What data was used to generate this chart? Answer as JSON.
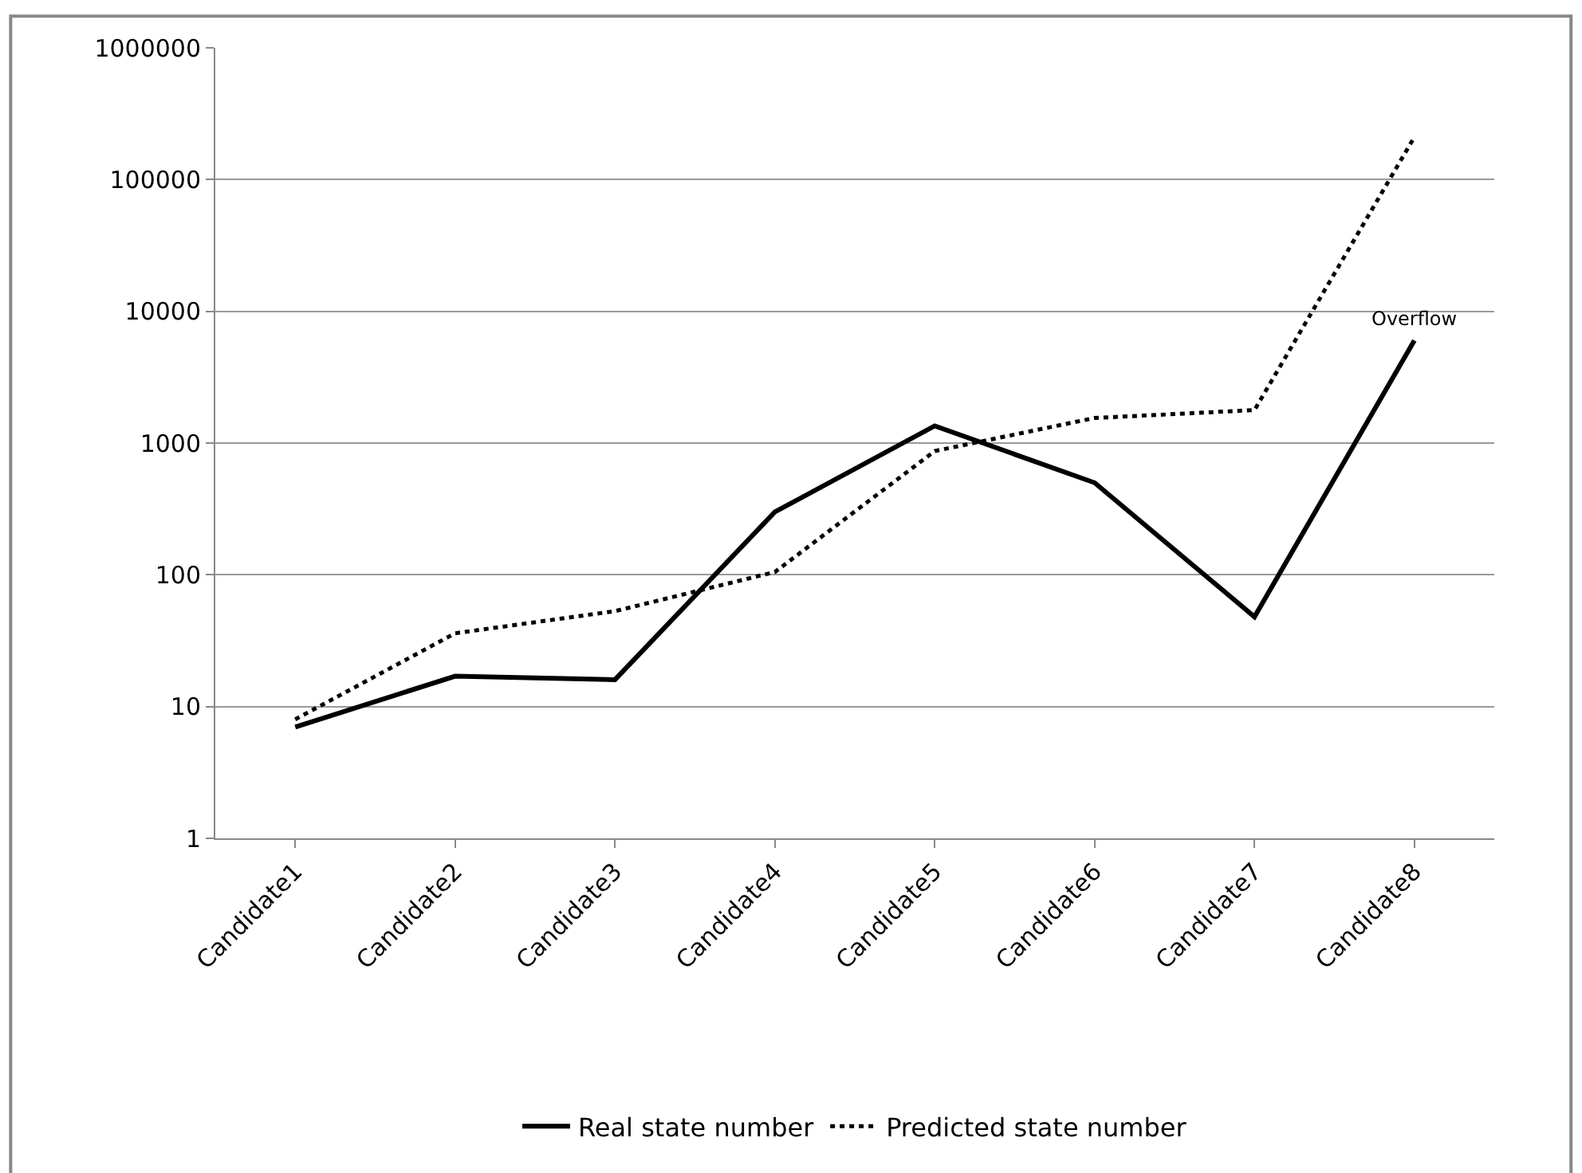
{
  "chart_data": {
    "type": "line",
    "categories": [
      "Candidate1",
      "Candidate2",
      "Candidate3",
      "Candidate4",
      "Candidate5",
      "Candidate6",
      "Candidate7",
      "Candidate8"
    ],
    "series": [
      {
        "name": "Real state number",
        "color": "#000000",
        "line_style": "solid",
        "values": [
          7,
          17,
          16,
          300,
          1350,
          500,
          48,
          6000
        ]
      },
      {
        "name": "Predicted state number",
        "color": "#000000",
        "line_style": "dotted",
        "values": [
          8,
          36,
          53,
          105,
          870,
          1550,
          1780,
          210000
        ]
      }
    ],
    "log": "y",
    "ylim": [
      1,
      1000000
    ],
    "yticks": [
      1,
      10,
      100,
      1000,
      10000,
      100000,
      1000000
    ],
    "grid": "y",
    "legend": "bottom",
    "marker": "none",
    "annotations": [
      {
        "text": "Overflow",
        "x": "Candidate8",
        "y": 6000
      }
    ]
  }
}
